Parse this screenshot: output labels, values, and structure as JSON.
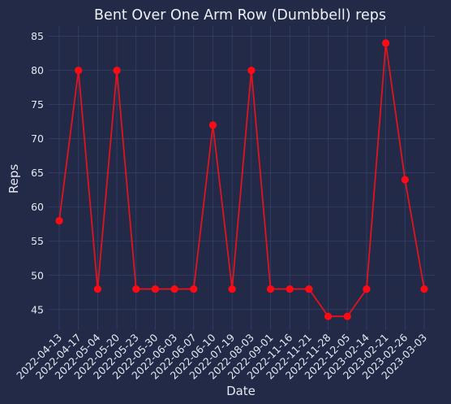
{
  "chart_data": {
    "type": "line",
    "title": "Bent Over One Arm Row (Dumbbell) reps",
    "xlabel": "Date",
    "ylabel": "Reps",
    "categories": [
      "2022-04-13",
      "2022-04-17",
      "2022-05-04",
      "2022-05-20",
      "2022-05-23",
      "2022-05-30",
      "2022-06-03",
      "2022-06-07",
      "2022-06-10",
      "2022-07-19",
      "2022-08-03",
      "2022-09-01",
      "2022-11-16",
      "2022-11-21",
      "2022-11-28",
      "2022-12-05",
      "2023-02-14",
      "2023-02-21",
      "2023-02-26",
      "2023-03-03"
    ],
    "series": [
      {
        "values": [
          58,
          80,
          48,
          80,
          48,
          48,
          48,
          48,
          72,
          48,
          80,
          48,
          48,
          48,
          44,
          44,
          48,
          84,
          64,
          48
        ]
      }
    ],
    "ylim": [
      42,
      86.5
    ],
    "yticks": [
      45,
      50,
      55,
      60,
      65,
      70,
      75,
      80,
      85
    ],
    "grid": true,
    "colors": {
      "line": "#e0141e",
      "marker": "#ff0a14",
      "background": "#222a48",
      "grid": "#34406a",
      "text": "#e6e8f0"
    }
  }
}
